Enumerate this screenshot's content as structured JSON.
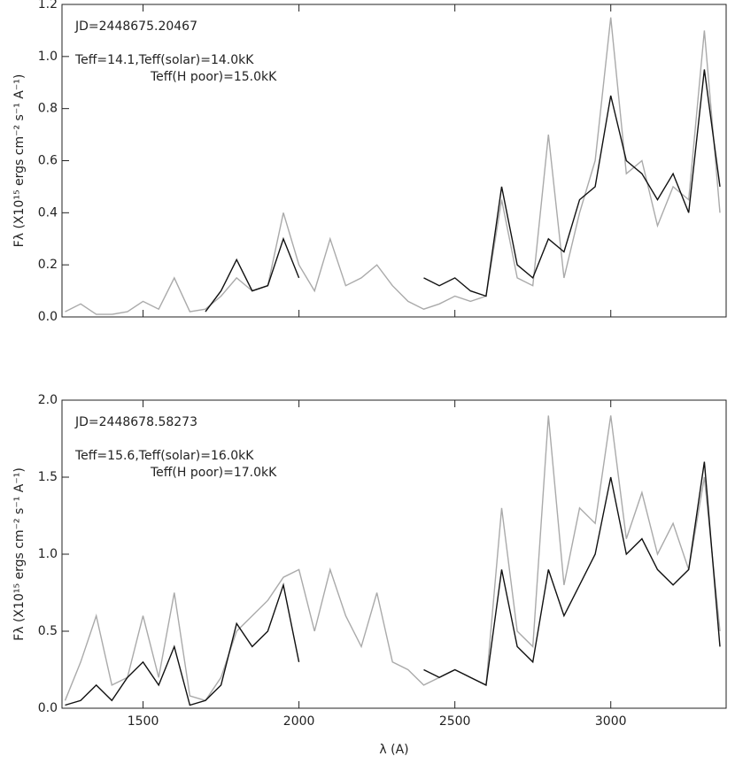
{
  "chart_data": [
    {
      "type": "line",
      "ylabel": "Fλ (X10¹⁵ ergs cm⁻² s⁻¹ A⁻¹)",
      "annotations": [
        "JD=2448675.20467",
        "Teff=14.1,Teff(solar)=14.0kK",
        "Teff(H poor)=15.0kK"
      ],
      "x": [
        1250,
        1300,
        1350,
        1400,
        1450,
        1500,
        1550,
        1600,
        1650,
        1700,
        1750,
        1800,
        1850,
        1900,
        1950,
        2000,
        2050,
        2100,
        2150,
        2200,
        2250,
        2300,
        2350,
        2400,
        2450,
        2500,
        2550,
        2600,
        2650,
        2700,
        2750,
        2800,
        2850,
        2900,
        2950,
        3000,
        3050,
        3100,
        3150,
        3200,
        3250,
        3300,
        3350
      ],
      "series": [
        {
          "color": "#aaaaaa",
          "values": [
            0.02,
            0.05,
            0.01,
            0.01,
            0.02,
            0.06,
            0.03,
            0.15,
            0.02,
            0.03,
            0.08,
            0.15,
            0.1,
            0.12,
            0.4,
            0.2,
            0.1,
            0.3,
            0.12,
            0.15,
            0.2,
            0.12,
            0.06,
            0.03,
            0.05,
            0.08,
            0.06,
            0.08,
            0.45,
            0.15,
            0.12,
            0.7,
            0.15,
            0.4,
            0.6,
            1.15,
            0.55,
            0.6,
            0.35,
            0.5,
            0.45,
            1.1,
            0.4
          ]
        },
        {
          "color": "#111111",
          "values": [
            null,
            null,
            null,
            null,
            null,
            null,
            null,
            null,
            null,
            0.02,
            0.1,
            0.22,
            0.1,
            0.12,
            0.3,
            0.15,
            null,
            null,
            null,
            null,
            null,
            null,
            null,
            0.15,
            0.12,
            0.15,
            0.1,
            0.08,
            0.5,
            0.2,
            0.15,
            0.3,
            0.25,
            0.45,
            0.5,
            0.85,
            0.6,
            0.55,
            0.45,
            0.55,
            0.4,
            0.95,
            0.5
          ]
        }
      ],
      "xlim": [
        1240,
        3370
      ],
      "xticks": [
        1500,
        2000,
        2500,
        3000
      ],
      "ylim": [
        0,
        1.2
      ],
      "yticks": [
        {
          "value": 0,
          "label": "0.0"
        },
        0.2,
        0.4,
        0.6,
        0.8,
        {
          "value": 1,
          "label": "1.0"
        },
        1.2
      ]
    },
    {
      "type": "line",
      "ylabel": "Fλ (X10¹⁵ ergs cm⁻² s⁻¹ A⁻¹)",
      "xlabel": "λ (A)",
      "annotations": [
        "JD=2448678.58273",
        "Teff=15.6,Teff(solar)=16.0kK",
        "Teff(H poor)=17.0kK"
      ],
      "x": [
        1250,
        1300,
        1350,
        1400,
        1450,
        1500,
        1550,
        1600,
        1650,
        1700,
        1750,
        1800,
        1850,
        1900,
        1950,
        2000,
        2050,
        2100,
        2150,
        2200,
        2250,
        2300,
        2350,
        2400,
        2450,
        2500,
        2550,
        2600,
        2650,
        2700,
        2750,
        2800,
        2850,
        2900,
        2950,
        3000,
        3050,
        3100,
        3150,
        3200,
        3250,
        3300,
        3350
      ],
      "series": [
        {
          "color": "#aaaaaa",
          "values": [
            0.05,
            0.3,
            0.6,
            0.15,
            0.2,
            0.6,
            0.2,
            0.75,
            0.08,
            0.05,
            0.2,
            0.5,
            0.6,
            0.7,
            0.85,
            0.9,
            0.5,
            0.9,
            0.6,
            0.4,
            0.75,
            0.3,
            0.25,
            0.15,
            0.2,
            0.25,
            0.2,
            0.15,
            1.3,
            0.5,
            0.4,
            1.9,
            0.8,
            1.3,
            1.2,
            1.9,
            1.1,
            1.4,
            1.0,
            1.2,
            0.9,
            1.5,
            0.5
          ]
        },
        {
          "color": "#111111",
          "values": [
            0.02,
            0.05,
            0.15,
            0.05,
            0.2,
            0.3,
            0.15,
            0.4,
            0.02,
            0.05,
            0.15,
            0.55,
            0.4,
            0.5,
            0.8,
            0.3,
            null,
            null,
            null,
            null,
            null,
            null,
            null,
            0.25,
            0.2,
            0.25,
            0.2,
            0.15,
            0.9,
            0.4,
            0.3,
            0.9,
            0.6,
            0.8,
            1.0,
            1.5,
            1.0,
            1.1,
            0.9,
            0.8,
            0.9,
            1.6,
            0.4
          ]
        }
      ],
      "xlim": [
        1240,
        3370
      ],
      "xticks": [
        1500,
        2000,
        2500,
        3000
      ],
      "ylim": [
        0,
        2
      ],
      "yticks": [
        {
          "value": 0,
          "label": "0.0"
        },
        0.5,
        {
          "value": 1,
          "label": "1.0"
        },
        1.5,
        {
          "value": 2,
          "label": "2.0"
        }
      ]
    }
  ]
}
